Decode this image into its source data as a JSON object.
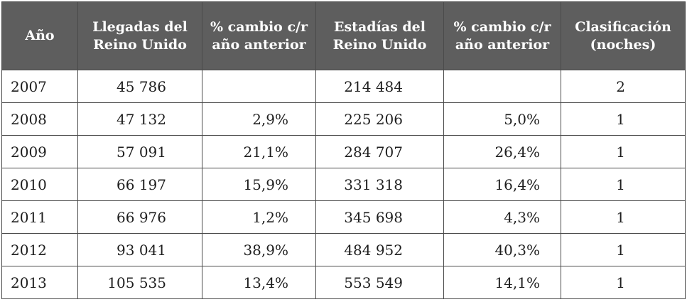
{
  "table": {
    "headers": [
      [
        "Año"
      ],
      [
        "Llegadas del",
        "Reino Unido"
      ],
      [
        "% cambio c/r",
        "año anterior"
      ],
      [
        "Estadías del",
        "Reino Unido"
      ],
      [
        "% cambio c/r",
        "año anterior"
      ],
      [
        "Clasificación",
        "(noches)"
      ]
    ],
    "rows": [
      [
        "2007",
        "45 786",
        "",
        "214 484",
        "",
        "2"
      ],
      [
        "2008",
        "47 132",
        "2,9%",
        "225 206",
        "5,0%",
        "1"
      ],
      [
        "2009",
        "57 091",
        "21,1%",
        "284 707",
        "26,4%",
        "1"
      ],
      [
        "2010",
        "66 197",
        "15,9%",
        "331 318",
        "16,4%",
        "1"
      ],
      [
        "2011",
        "66 976",
        "1,2%",
        "345 698",
        "4,3%",
        "1"
      ],
      [
        "2012",
        "93 041",
        "38,9%",
        "484 952",
        "40,3%",
        "1"
      ],
      [
        "2013",
        "105 535",
        "13,4%",
        "553 549",
        "14,1%",
        "1"
      ]
    ]
  }
}
